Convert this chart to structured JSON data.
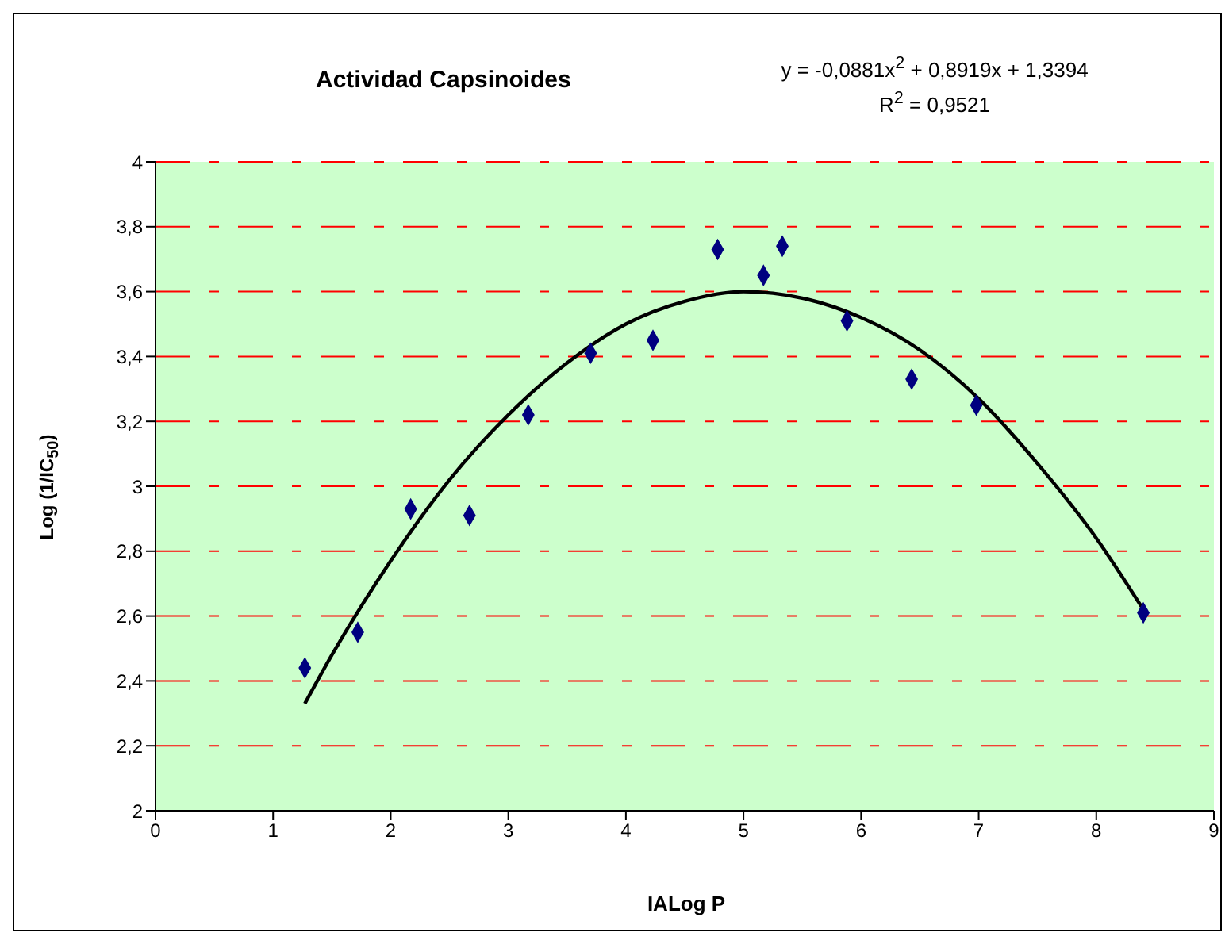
{
  "chart_data": {
    "type": "scatter",
    "title": "Actividad Capsinoides",
    "xlabel": "IALog P",
    "ylabel": "Log (1/IC$_{50}$)",
    "annotations": [
      "y = -0,0881x$^{2}$ + 0,8919x + 1,3394",
      "R$^{2}$ = 0,9521"
    ],
    "series": [
      {
        "color": "#000080",
        "x": [
          1.27,
          1.72,
          2.17,
          2.67,
          3.17,
          3.7,
          4.23,
          4.78,
          5.17,
          5.33,
          5.88,
          6.43,
          6.98,
          8.4
        ],
        "values": [
          2.44,
          2.55,
          2.93,
          2.91,
          3.22,
          3.41,
          3.45,
          3.73,
          3.65,
          3.74,
          3.51,
          3.33,
          3.25,
          2.61
        ]
      },
      {
        "type": "line",
        "color": "#000000",
        "line_style": "solid",
        "marker": "none",
        "x": [
          1.27,
          1.5,
          2,
          2.5,
          3,
          3.5,
          4,
          4.5,
          5,
          5.5,
          6,
          6.5,
          7,
          7.5,
          8,
          8.4
        ],
        "values": [
          2.33,
          2.48,
          2.77,
          3.02,
          3.22,
          3.38,
          3.5,
          3.57,
          3.6,
          3.58,
          3.52,
          3.42,
          3.27,
          3.07,
          2.84,
          2.62
        ]
      }
    ],
    "marker": "diamond",
    "xlim": [
      0,
      9
    ],
    "xticks": [
      0,
      1,
      2,
      3,
      4,
      5,
      6,
      7,
      8,
      9
    ],
    "ylim": [
      2,
      4
    ],
    "yticks": [
      2,
      {
        "value": 2.2,
        "label": "2,2"
      },
      {
        "value": 2.4,
        "label": "2,4"
      },
      {
        "value": 2.6,
        "label": "2,6"
      },
      {
        "value": 2.8,
        "label": "2,8"
      },
      3,
      {
        "value": 3.2,
        "label": "3,2"
      },
      {
        "value": 3.4,
        "label": "3,4"
      },
      {
        "value": 3.6,
        "label": "3,6"
      },
      {
        "value": 3.8,
        "label": "3,8"
      },
      4
    ],
    "grid": "y"
  }
}
